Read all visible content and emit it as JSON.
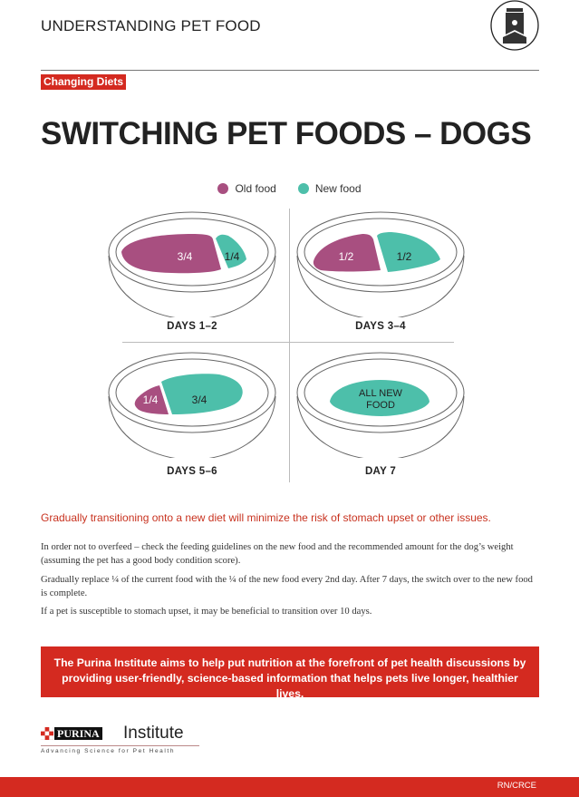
{
  "header": {
    "title": "UNDERSTANDING PET FOOD",
    "icon": "pet-food-bag-icon"
  },
  "badge": "Changing Diets",
  "title": "SWITCHING PET FOODS – DOGS",
  "legend": [
    {
      "label": "Old food",
      "color": "#a84f80"
    },
    {
      "label": "New food",
      "color": "#4dbfaa"
    }
  ],
  "bowls": [
    {
      "day": "DAYS 1–2",
      "old": "3/4",
      "new": "1/4"
    },
    {
      "day": "DAYS 3–4",
      "old": "1/2",
      "new": "1/2"
    },
    {
      "day": "DAYS 5–6",
      "old": "1/4",
      "new": "3/4"
    },
    {
      "day": "DAY 7",
      "all_line1": "ALL NEW",
      "all_line2": "FOOD"
    }
  ],
  "lead": "Gradually transitioning onto a new diet will minimize the risk of stomach upset or other issues.",
  "paragraphs": [
    "In order not to overfeed – check the feeding guidelines on the new food and the recommended amount for the dog’s weight (assuming the pet has a good body condition score).",
    "Gradually replace ¼ of the current food with the ¼ of the new food every 2nd day. After 7 days, the switch over to the new food is complete.",
    "If a pet is susceptible to stomach upset, it may be beneficial to transition over 10 days."
  ],
  "callout": "The Purina Institute aims to help put nutrition at the forefront of pet health discussions by providing user-friendly, science-based information that helps pets live longer, healthier lives.",
  "logo": {
    "brand": "PURINA",
    "name": "Institute",
    "tagline": "Advancing Science for Pet Health"
  },
  "footer": {
    "code": "RN/CRCE"
  }
}
